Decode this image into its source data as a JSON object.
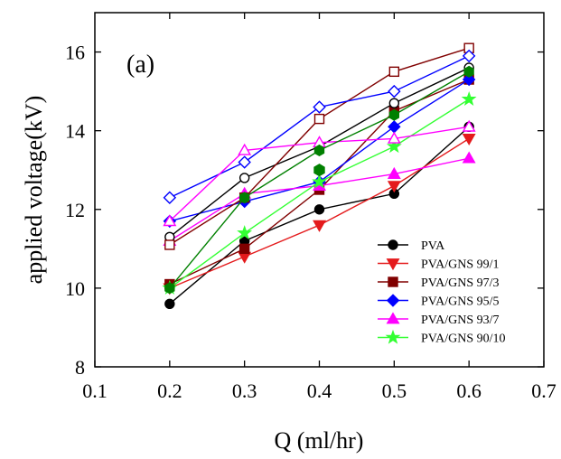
{
  "chart_data": {
    "type": "line",
    "panel_label": "(a)",
    "xlabel": "Q (ml/hr)",
    "ylabel": "applied voltage(kV)",
    "xlim": [
      0.1,
      0.7
    ],
    "ylim": [
      8,
      17
    ],
    "xticks": [
      0.1,
      0.2,
      0.3,
      0.4,
      0.5,
      0.6,
      0.7
    ],
    "yticks": [
      8,
      10,
      12,
      14,
      16
    ],
    "xtick_labels": [
      "0.1",
      "0.2",
      "0.3",
      "0.4",
      "0.5",
      "0.6",
      "0.7"
    ],
    "ytick_labels": [
      "8",
      "10",
      "12",
      "14",
      "16"
    ],
    "grid": false,
    "legend_position": "lower-right",
    "x": [
      0.2,
      0.3,
      0.4,
      0.5,
      0.6
    ],
    "series": [
      {
        "name": "PVA",
        "color": "#000000",
        "marker": "circle",
        "filled": true,
        "in_legend": true,
        "values": [
          9.6,
          11.2,
          12.0,
          12.4,
          14.1
        ]
      },
      {
        "name": "PVA/GNS 99/1",
        "color": "#e41a1c",
        "marker": "triangle-down",
        "filled": true,
        "in_legend": true,
        "values": [
          10.0,
          10.8,
          11.6,
          12.6,
          13.8
        ]
      },
      {
        "name": "PVA/GNS 97/3",
        "color": "#800000",
        "marker": "square",
        "filled": true,
        "in_legend": true,
        "values": [
          10.1,
          11.0,
          12.5,
          14.5,
          15.3
        ]
      },
      {
        "name": "PVA/GNS 95/5",
        "color": "#0000ff",
        "marker": "diamond",
        "filled": true,
        "in_legend": true,
        "values": [
          11.7,
          12.2,
          12.7,
          14.1,
          15.3
        ]
      },
      {
        "name": "PVA/GNS 93/7",
        "color": "#ff00ff",
        "marker": "triangle-up",
        "filled": true,
        "in_legend": true,
        "values": [
          11.2,
          12.4,
          12.6,
          12.9,
          13.3
        ]
      },
      {
        "name": "PVA/GNS 90/10",
        "color": "#33ff33",
        "marker": "star",
        "filled": true,
        "in_legend": true,
        "values": [
          10.0,
          11.4,
          12.7,
          13.6,
          14.8
        ]
      },
      {
        "name": "",
        "color": "#000000",
        "marker": "circle",
        "filled": false,
        "in_legend": false,
        "values": [
          11.3,
          12.8,
          13.6,
          14.7,
          15.6
        ]
      },
      {
        "name": "",
        "color": "#800000",
        "marker": "square",
        "filled": false,
        "in_legend": false,
        "values": [
          11.1,
          12.3,
          14.3,
          15.5,
          16.1
        ]
      },
      {
        "name": "",
        "color": "#0000ff",
        "marker": "diamond",
        "filled": false,
        "in_legend": false,
        "values": [
          12.3,
          13.2,
          14.6,
          15.0,
          15.9
        ]
      },
      {
        "name": "",
        "color": "#ff00ff",
        "marker": "triangle-up",
        "filled": false,
        "in_legend": false,
        "values": [
          11.7,
          13.5,
          13.7,
          13.8,
          14.1
        ]
      },
      {
        "name": "",
        "color": "#008000",
        "marker": "hexagon",
        "filled": true,
        "in_legend": false,
        "values": [
          10.0,
          12.3,
          13.5,
          14.4,
          15.5
        ]
      }
    ],
    "extra_points": [
      {
        "x": 0.4,
        "y": 13.0,
        "color": "#008000",
        "marker": "hexagon",
        "filled": true
      }
    ]
  }
}
